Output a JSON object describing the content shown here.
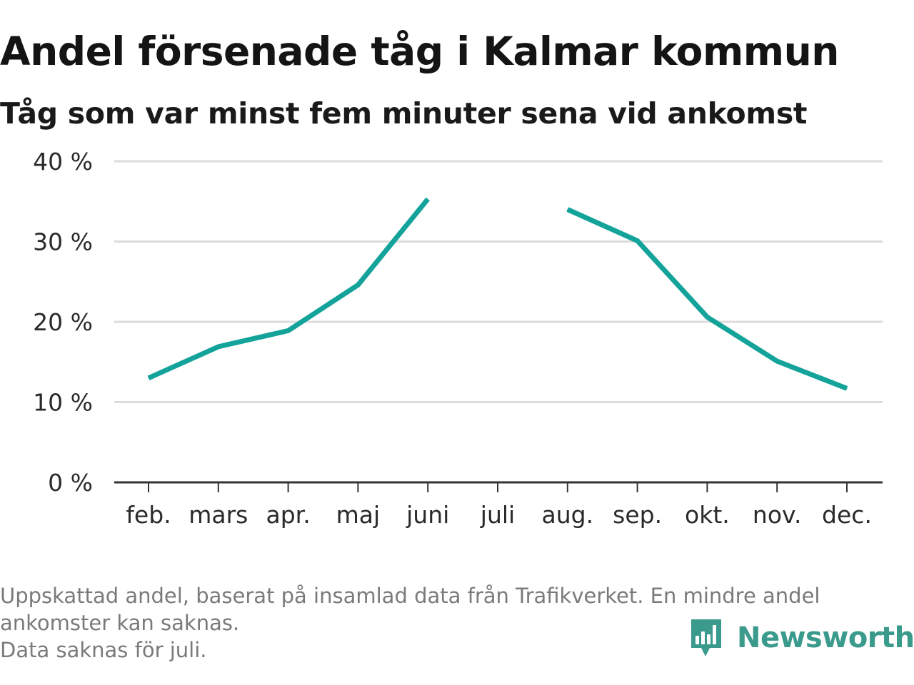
{
  "header": {
    "title": "Andel försenade tåg i Kalmar kommun",
    "subtitle": "Tåg som var minst fem minuter sena vid ankomst"
  },
  "footer": {
    "note_line1": "Uppskattad andel, baserat på insamlad data från Trafikverket. En mindre andel",
    "note_line2": "ankomster kan saknas.",
    "note_line3": "Data saknas för juli.",
    "logo_text": "Newsworthy"
  },
  "colors": {
    "line": "#14a39a",
    "grid": "#dcdcdc",
    "axis": "#333333",
    "brand": "#3a9a8c"
  },
  "icons": {
    "logo": "bar-chart-speech-bubble-icon"
  },
  "chart_data": {
    "type": "line",
    "title": "Andel försenade tåg i Kalmar kommun",
    "subtitle": "Tåg som var minst fem minuter sena vid ankomst",
    "categories": [
      "feb.",
      "mars",
      "apr.",
      "maj",
      "juni",
      "juli",
      "aug.",
      "sep.",
      "okt.",
      "nov.",
      "dec."
    ],
    "series": [
      {
        "values": [
          13.0,
          16.9,
          18.9,
          24.6,
          35.3,
          null,
          34.0,
          30.1,
          20.6,
          15.1,
          11.7
        ]
      }
    ],
    "ylim": [
      0,
      40
    ],
    "yticks": [
      0,
      10,
      20,
      30,
      40
    ],
    "ytick_labels": [
      "0 %",
      "10 %",
      "20 %",
      "30 %",
      "40 %"
    ],
    "xlabel": "",
    "ylabel": "",
    "grid": "horizontal",
    "legend": "none",
    "missing": [
      "juli"
    ]
  }
}
